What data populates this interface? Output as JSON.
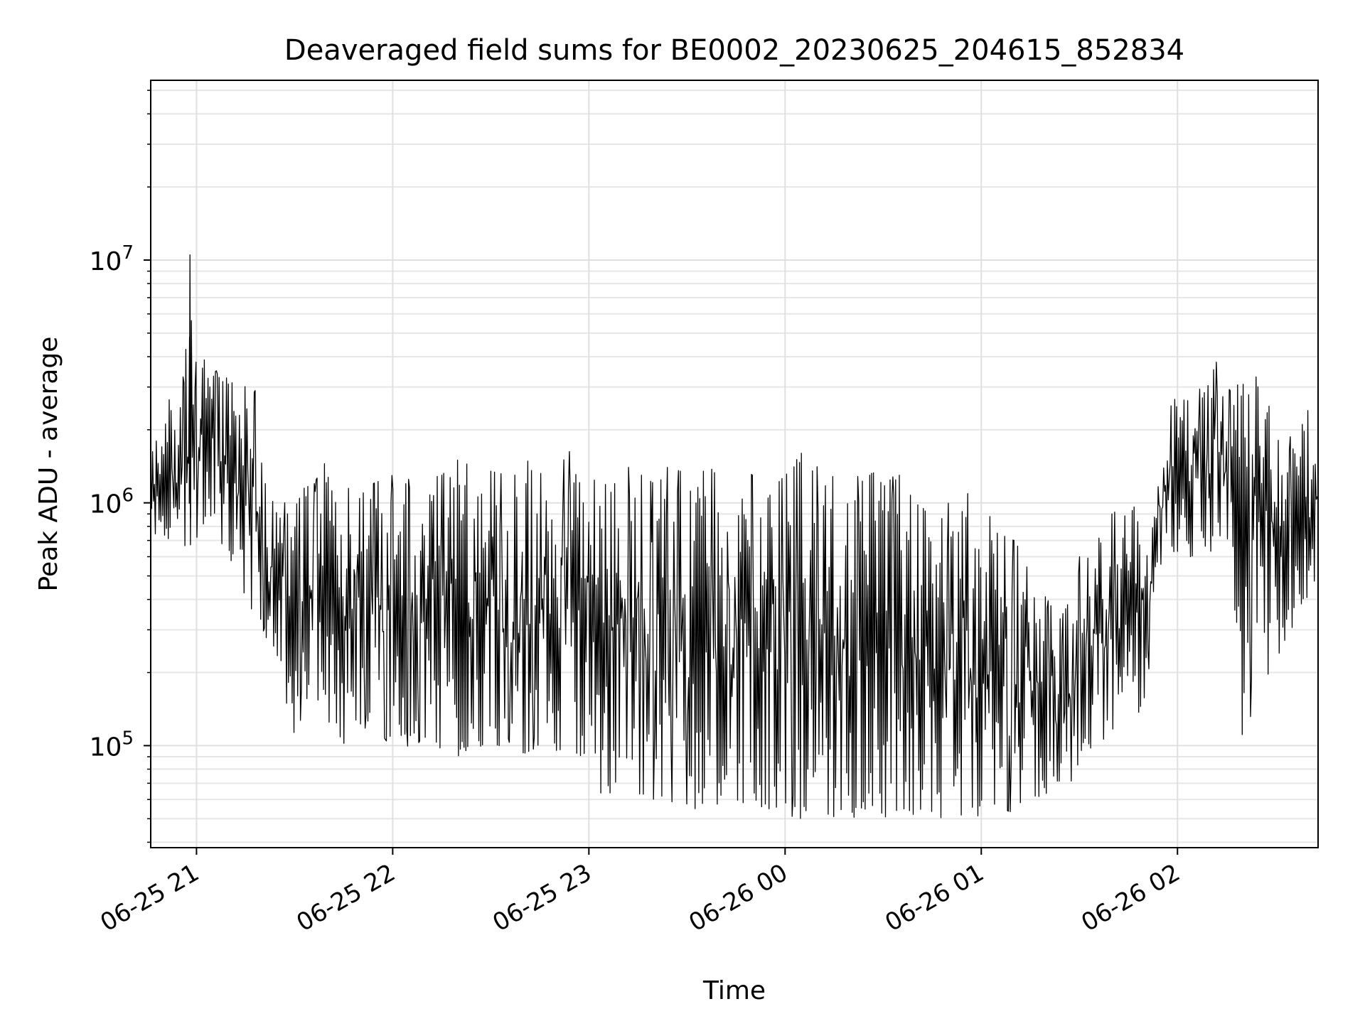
{
  "chart_data": {
    "type": "line",
    "title": "Deaveraged field sums for BE0002_20230625_204615_852834",
    "xlabel": "Time",
    "ylabel": "Peak ADU - average",
    "y_scale": "log",
    "ylim": [
      38000,
      55000000
    ],
    "xlim": [
      "2023-06-25 20:46",
      "2023-06-26 02:43"
    ],
    "x_ticks": [
      {
        "t": "2023-06-25 21:00",
        "label": "06-25 21"
      },
      {
        "t": "2023-06-25 22:00",
        "label": "06-25 22"
      },
      {
        "t": "2023-06-25 23:00",
        "label": "06-25 23"
      },
      {
        "t": "2023-06-26 00:00",
        "label": "06-26 00"
      },
      {
        "t": "2023-06-26 01:00",
        "label": "06-26 01"
      },
      {
        "t": "2023-06-26 02:00",
        "label": "06-26 02"
      }
    ],
    "y_ticks": [
      {
        "value": 100000,
        "base": "10",
        "exp": "5"
      },
      {
        "value": 1000000,
        "base": "10",
        "exp": "6"
      },
      {
        "value": 10000000,
        "base": "10",
        "exp": "7"
      }
    ],
    "grid": true,
    "legend": "none",
    "line_color": "#000000",
    "series": [
      {
        "x": [
          "2023-06-25 20:46",
          "2023-06-25 20:50",
          "2023-06-25 20:53",
          "2023-06-25 20:56",
          "2023-06-25 20:58",
          "2023-06-25 21:00",
          "2023-06-25 21:03",
          "2023-06-25 21:06",
          "2023-06-25 21:09",
          "2023-06-25 21:12",
          "2023-06-25 21:15",
          "2023-06-25 21:18",
          "2023-06-25 21:21",
          "2023-06-25 21:24",
          "2023-06-25 21:27",
          "2023-06-25 21:30",
          "2023-06-25 21:33",
          "2023-06-25 21:36",
          "2023-06-25 21:39",
          "2023-06-25 21:42",
          "2023-06-25 21:45",
          "2023-06-25 21:48",
          "2023-06-25 21:51",
          "2023-06-25 21:54",
          "2023-06-25 21:57",
          "2023-06-25 22:00",
          "2023-06-25 22:05",
          "2023-06-25 22:10",
          "2023-06-25 22:15",
          "2023-06-25 22:20",
          "2023-06-25 22:25",
          "2023-06-25 22:30",
          "2023-06-25 22:35",
          "2023-06-25 22:40",
          "2023-06-25 22:45",
          "2023-06-25 22:50",
          "2023-06-25 22:55",
          "2023-06-25 22:57",
          "2023-06-25 23:00",
          "2023-06-25 23:04",
          "2023-06-25 23:08",
          "2023-06-25 23:12",
          "2023-06-25 23:16",
          "2023-06-25 23:20",
          "2023-06-25 23:24",
          "2023-06-25 23:28",
          "2023-06-25 23:32",
          "2023-06-25 23:35",
          "2023-06-25 23:40",
          "2023-06-25 23:45",
          "2023-06-25 23:50",
          "2023-06-25 23:55",
          "2023-06-26 00:00",
          "2023-06-26 00:05",
          "2023-06-26 00:10",
          "2023-06-26 00:15",
          "2023-06-26 00:20",
          "2023-06-26 00:25",
          "2023-06-26 00:30",
          "2023-06-26 00:35",
          "2023-06-26 00:40",
          "2023-06-26 00:45",
          "2023-06-26 00:50",
          "2023-06-26 00:55",
          "2023-06-26 01:00",
          "2023-06-26 01:05",
          "2023-06-26 01:10",
          "2023-06-26 01:15",
          "2023-06-26 01:20",
          "2023-06-26 01:25",
          "2023-06-26 01:30",
          "2023-06-26 01:35",
          "2023-06-26 01:40",
          "2023-06-26 01:45",
          "2023-06-26 01:50",
          "2023-06-26 01:53",
          "2023-06-26 01:56",
          "2023-06-26 02:00",
          "2023-06-26 02:04",
          "2023-06-26 02:08",
          "2023-06-26 02:12",
          "2023-06-26 02:16",
          "2023-06-26 02:20",
          "2023-06-26 02:24",
          "2023-06-26 02:28",
          "2023-06-26 02:32",
          "2023-06-26 02:36",
          "2023-06-26 02:40",
          "2023-06-26 02:43"
        ],
        "upper": [
          1600000,
          2500000,
          2800000,
          3300000,
          10500000,
          3800000,
          4000000,
          3500000,
          3700000,
          3200000,
          3000000,
          2900000,
          1200000,
          1000000,
          1000000,
          950000,
          1150000,
          1200000,
          1450000,
          1100000,
          1200000,
          1300000,
          1100000,
          1200000,
          1250000,
          1300000,
          1250000,
          1400000,
          1300000,
          1500000,
          1400000,
          1350000,
          1300000,
          1500000,
          1450000,
          1350000,
          1700000,
          1300000,
          1200000,
          1300000,
          1200000,
          1400000,
          1300000,
          1200000,
          1400000,
          1350000,
          1200000,
          1350000,
          1400000,
          1500000,
          1300000,
          1100000,
          1300000,
          1600000,
          1400000,
          1300000,
          1200000,
          1400000,
          1250000,
          1300000,
          1200000,
          800000,
          1000000,
          1100000,
          1050000,
          750000,
          700000,
          550000,
          400000,
          350000,
          600000,
          700000,
          900000,
          1000000,
          900000,
          1000000,
          2600000,
          2800000,
          2600000,
          3100000,
          3800000,
          2900000,
          3200000,
          3300000,
          2500000,
          2000000,
          1800000,
          2400000,
          1800000
        ],
        "lower": [
          700000,
          720000,
          700000,
          680000,
          620000,
          720000,
          750000,
          700000,
          660000,
          500000,
          380000,
          330000,
          290000,
          200000,
          160000,
          110000,
          140000,
          150000,
          130000,
          120000,
          100000,
          130000,
          120000,
          110000,
          110000,
          95000,
          100000,
          105000,
          95000,
          90000,
          100000,
          95000,
          105000,
          92000,
          100000,
          90000,
          95000,
          92000,
          85000,
          62000,
          65000,
          70000,
          62000,
          60000,
          58000,
          60000,
          55000,
          54000,
          58000,
          60000,
          56000,
          55000,
          52000,
          50000,
          52000,
          51000,
          50000,
          53000,
          51000,
          50000,
          52000,
          51000,
          50000,
          52000,
          51000,
          55000,
          53000,
          60000,
          62000,
          60000,
          85000,
          100000,
          100000,
          200000,
          110000,
          500000,
          550000,
          600000,
          600000,
          620000,
          630000,
          700000,
          100000,
          160000,
          200000,
          250000,
          300000,
          400000,
          500000
        ]
      }
    ]
  }
}
